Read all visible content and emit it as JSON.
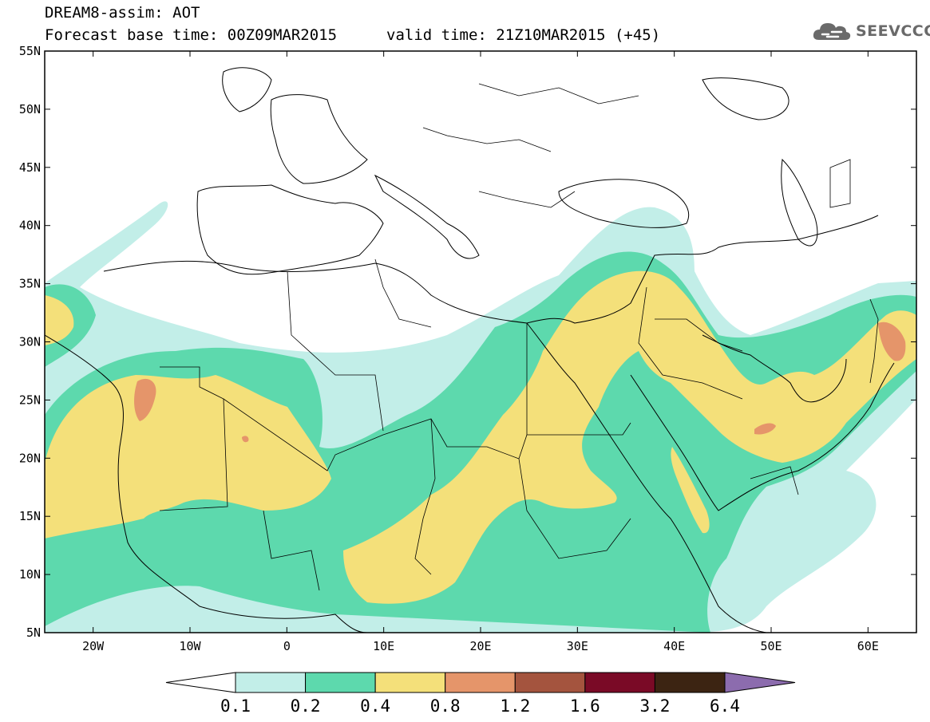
{
  "title": {
    "line1": "DREAM8-assim: AOT",
    "line2": "Forecast base time: 00Z09MAR2015",
    "valid": "valid time: 21Z10MAR2015 (+45)"
  },
  "logo": {
    "text": "SEEVCCC",
    "icon": "cloud-icon",
    "color": "#666666"
  },
  "map": {
    "lon_range": [
      -25,
      65
    ],
    "lat_range": [
      5,
      55
    ],
    "lat_ticks": [
      "5N",
      "10N",
      "15N",
      "20N",
      "25N",
      "30N",
      "35N",
      "40N",
      "45N",
      "50N",
      "55N"
    ],
    "lon_ticks": [
      "20W",
      "10W",
      "0",
      "10E",
      "20E",
      "30E",
      "40E",
      "50E",
      "60E"
    ],
    "field": "Aerosol Optical Thickness",
    "max_region_note": "Highest values (1.2–1.6) over Western Sahara, central Saudi Arabia and the Iran–Afghanistan border"
  },
  "colorbar": {
    "labels": [
      "0.1",
      "0.2",
      "0.4",
      "0.8",
      "1.2",
      "1.6",
      "3.2",
      "6.4"
    ],
    "colors": [
      "#ffffff",
      "#c2eee8",
      "#5dd9ad",
      "#f4e07a",
      "#e5956a",
      "#a4543e",
      "#7a0a26",
      "#3c2412",
      "#8c6cae"
    ]
  }
}
